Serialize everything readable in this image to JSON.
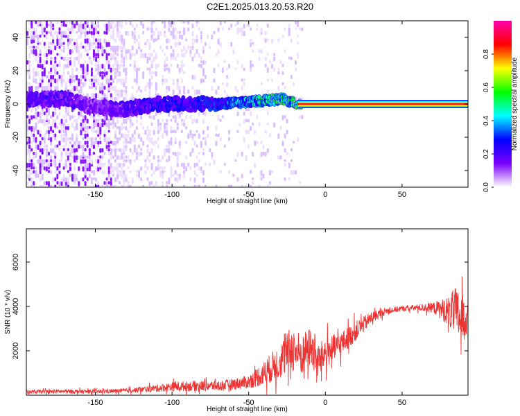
{
  "title": "C2E1.2025.013.20.53.R20",
  "chart_data": [
    {
      "type": "heatmap",
      "xlabel": "Height of straight line (km)",
      "ylabel": "Frequency (Hz)",
      "xlim": [
        -195,
        93
      ],
      "ylim": [
        -50,
        50
      ],
      "xticks": [
        -150,
        -100,
        -50,
        0,
        50
      ],
      "yticks": [
        -40,
        -20,
        0,
        20,
        40
      ],
      "colorbar": {
        "label": "Normalized spectral amplitude",
        "range": [
          0,
          1
        ],
        "ticks": [
          0.0,
          0.2,
          0.4,
          0.6,
          0.8
        ],
        "colormap": [
          "#ffffff",
          "#7b00ff",
          "#0000ff",
          "#00ffff",
          "#00ff00",
          "#ffff00",
          "#ff0000",
          "#ff00aa"
        ]
      },
      "signal_track": {
        "x": [
          -195,
          -170,
          -150,
          -130,
          -110,
          -90,
          -70,
          -55,
          -40,
          -28,
          -22,
          -18,
          0,
          30,
          60,
          93
        ],
        "frequency": [
          3,
          3,
          -2,
          -3,
          0,
          0,
          0,
          1,
          2,
          3,
          1,
          0,
          0,
          0,
          0,
          0
        ],
        "amplitude": [
          0.2,
          0.2,
          0.15,
          0.2,
          0.25,
          0.25,
          0.3,
          0.4,
          0.5,
          0.55,
          0.5,
          0.7,
          0.9,
          0.9,
          0.9,
          0.9
        ]
      }
    },
    {
      "type": "line",
      "xlabel": "Height of straight line (km)",
      "ylabel": "SNR (10 * v/v)",
      "xlim": [
        -195,
        93
      ],
      "ylim": [
        0,
        7500
      ],
      "xticks": [
        -150,
        -100,
        -50,
        0,
        50
      ],
      "yticks": [
        2000,
        4000,
        6000
      ],
      "color": "#ee3333",
      "envelope": {
        "x": [
          -195,
          -170,
          -150,
          -130,
          -115,
          -100,
          -85,
          -70,
          -60,
          -50,
          -40,
          -30,
          -22,
          -15,
          -10,
          -5,
          0,
          10,
          20,
          30,
          40,
          50,
          60,
          70,
          80,
          85,
          90,
          93
        ],
        "mean": [
          150,
          170,
          160,
          200,
          280,
          380,
          420,
          420,
          500,
          600,
          1000,
          1500,
          2100,
          1800,
          2200,
          1500,
          1900,
          2300,
          2900,
          3500,
          3800,
          3900,
          3950,
          3950,
          3800,
          3700,
          3400,
          3600
        ],
        "spread": [
          100,
          120,
          110,
          120,
          180,
          260,
          300,
          280,
          320,
          380,
          700,
          1000,
          1300,
          1200,
          1100,
          1000,
          900,
          700,
          550,
          350,
          180,
          150,
          180,
          300,
          800,
          1500,
          1300,
          900
        ]
      }
    }
  ]
}
